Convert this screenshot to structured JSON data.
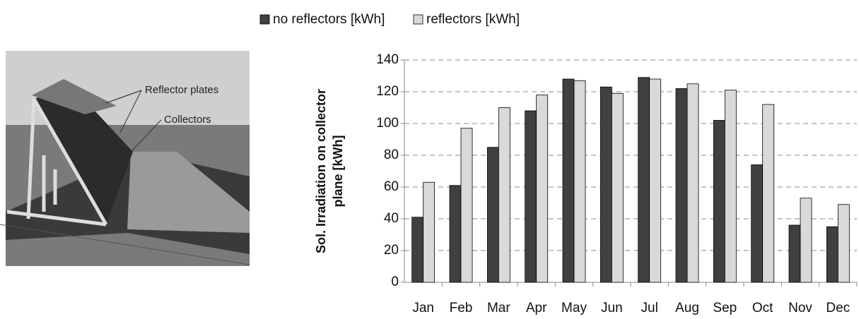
{
  "illustration": {
    "labels": [
      "Reflector plates",
      "Collectors"
    ]
  },
  "chart_data": {
    "type": "bar",
    "ylabel": [
      "Sol. Irradiation on collector",
      "plane [kWh]"
    ],
    "categories": [
      "Jan",
      "Feb",
      "Mar",
      "Apr",
      "May",
      "Jun",
      "Jul",
      "Aug",
      "Sep",
      "Oct",
      "Nov",
      "Dec"
    ],
    "series": [
      {
        "name": "no reflectors [kWh]",
        "color": "#404040",
        "values": [
          41,
          61,
          85,
          108,
          128,
          123,
          129,
          122,
          102,
          74,
          36,
          35
        ]
      },
      {
        "name": "reflectors [kWh]",
        "color": "#d9d9d9",
        "values": [
          63,
          97,
          110,
          118,
          127,
          119,
          128,
          125,
          121,
          112,
          53,
          49
        ]
      }
    ],
    "ylim": [
      0,
      140
    ],
    "yticks": [
      0,
      20,
      40,
      60,
      80,
      100,
      120,
      140
    ],
    "grid": true,
    "legend": "top"
  }
}
